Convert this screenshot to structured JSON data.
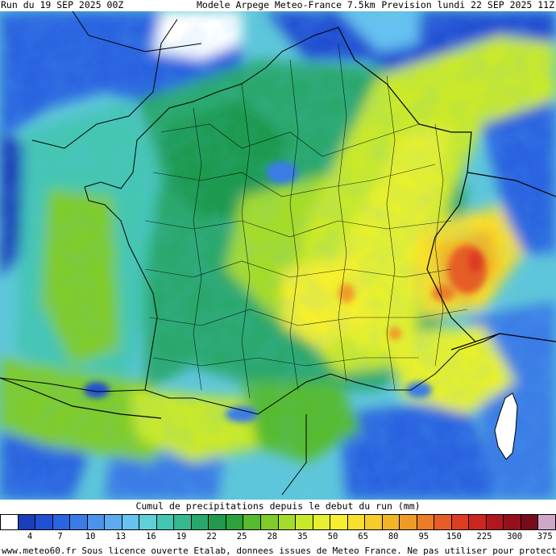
{
  "header": {
    "run": "Run du 19 SEP 2025 00Z",
    "model": "Modele Arpege Meteo-France 7.5km",
    "forecast": "Prevision lundi 22 SEP 2025 11Z"
  },
  "map": {
    "region": "France",
    "variable": "Cumul de precipitations depuis le debut du run (mm)",
    "palette_hint": {
      "sea_background": "#5fc7d9",
      "land_no_data": "#ffffff",
      "borders": "#000000"
    }
  },
  "legend": {
    "title": "Cumul de precipitations depuis le debut du run (mm)",
    "colors": [
      "#ffffff",
      "#1a3fb8",
      "#2050d2",
      "#2a64e0",
      "#3a7ce6",
      "#4c93ec",
      "#5eaaf0",
      "#66c2f0",
      "#5fcfd8",
      "#44c6b2",
      "#36b890",
      "#29a86c",
      "#1f9a4e",
      "#2ba33a",
      "#56bb2e",
      "#7fcc2b",
      "#a5dc2a",
      "#c9e92b",
      "#e6f02e",
      "#f5ef2f",
      "#f8e02c",
      "#f6cb2a",
      "#f3b428",
      "#f09a28",
      "#ec7d27",
      "#e65d25",
      "#dc3e22",
      "#cc2620",
      "#b3171e",
      "#96101c",
      "#780b1a",
      "#cfa7c9"
    ],
    "ticks": [
      "4",
      "7",
      "10",
      "13",
      "16",
      "19",
      "22",
      "25",
      "28",
      "35",
      "50",
      "65",
      "80",
      "95",
      "150",
      "225",
      "300",
      "375"
    ]
  },
  "footer": {
    "credit": "www.meteo60.fr Sous licence ouverte Etalab, donnees issues de Meteo France. Ne pas utiliser pour protection des biens et personnes"
  }
}
